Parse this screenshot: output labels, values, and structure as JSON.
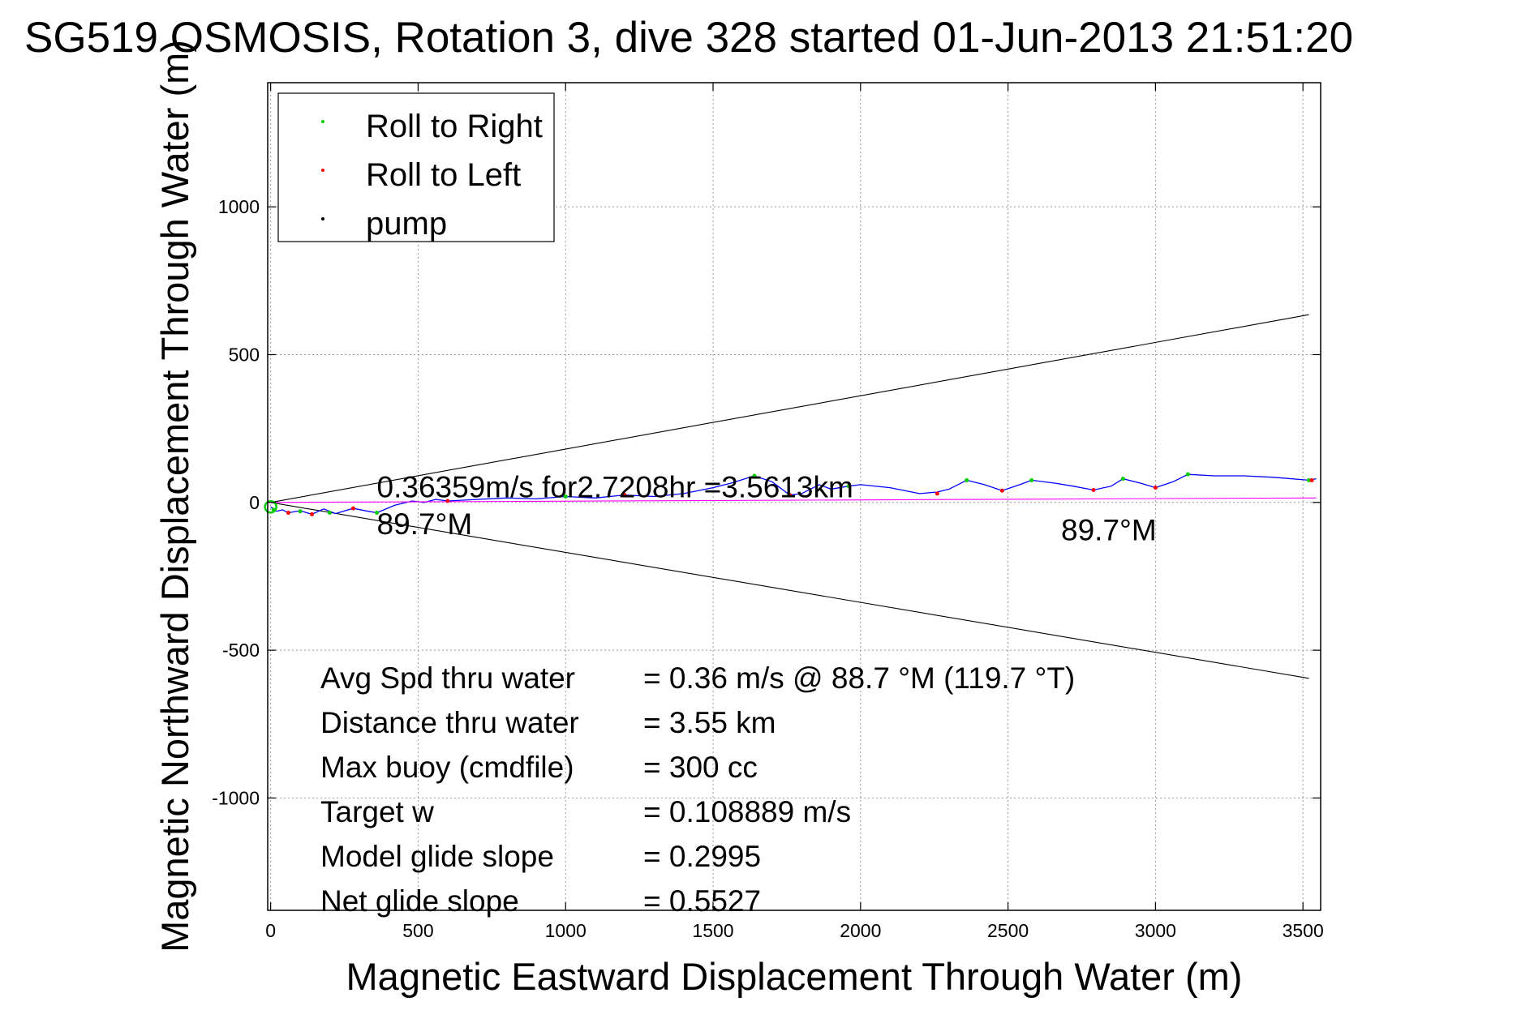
{
  "chart_data": {
    "type": "line",
    "title": "SG519 OSMOSIS, Rotation 3, dive 328 started 01-Jun-2013 21:51:20",
    "xlabel": "Magnetic Eastward Displacement Through Water (m)",
    "ylabel": "Magnetic Northward Displacement Through Water (m)",
    "xlim": [
      -10,
      3560
    ],
    "ylim": [
      -1380,
      1420
    ],
    "xticks": [
      0,
      500,
      1000,
      1500,
      2000,
      2500,
      3000,
      3500
    ],
    "yticks": [
      -1000,
      -500,
      0,
      500,
      1000
    ],
    "grid": true,
    "legend": {
      "placement": "top-left",
      "entries": [
        {
          "label": "Roll to Right",
          "color": "#00cc00"
        },
        {
          "label": "Roll to Left",
          "color": "#ff0000"
        },
        {
          "label": "pump",
          "color": "#000000"
        }
      ]
    },
    "series": [
      {
        "name": "track",
        "color": "#0000ff",
        "x": [
          0,
          20,
          40,
          60,
          100,
          140,
          180,
          220,
          280,
          330,
          360,
          420,
          480,
          520,
          560,
          600,
          700,
          800,
          900,
          1000,
          1100,
          1200,
          1300,
          1400,
          1500,
          1560,
          1640,
          1700,
          1760,
          1800,
          1860,
          1900,
          1960,
          2000,
          2100,
          2200,
          2260,
          2300,
          2360,
          2420,
          2480,
          2540,
          2580,
          2660,
          2720,
          2790,
          2850,
          2890,
          2950,
          3000,
          3060,
          3110,
          3200,
          3300,
          3400,
          3520,
          3545
        ],
        "y": [
          -15,
          -30,
          -25,
          -35,
          -28,
          -40,
          -22,
          -38,
          -20,
          -30,
          -35,
          -10,
          5,
          0,
          10,
          5,
          10,
          15,
          12,
          20,
          15,
          25,
          20,
          30,
          50,
          65,
          90,
          70,
          25,
          30,
          60,
          45,
          55,
          60,
          50,
          30,
          35,
          45,
          75,
          60,
          40,
          60,
          75,
          65,
          55,
          42,
          55,
          80,
          65,
          50,
          70,
          95,
          90,
          90,
          85,
          75,
          80
        ]
      },
      {
        "name": "course",
        "color": "#ff00ff",
        "x": [
          0,
          3545
        ],
        "y": [
          0,
          15
        ]
      },
      {
        "name": "envelope-upper",
        "color": "#000000",
        "x": [
          0,
          3520
        ],
        "y": [
          0,
          635
        ]
      },
      {
        "name": "envelope-lower",
        "color": "#000000",
        "x": [
          0,
          3520
        ],
        "y": [
          0,
          -595
        ]
      }
    ],
    "markers": {
      "roll_right": {
        "color": "#00cc00",
        "x": [
          10,
          100,
          200,
          360,
          1000,
          1640,
          1960,
          2360,
          2580,
          2890,
          3110,
          3520
        ],
        "y": [
          -25,
          -30,
          -35,
          -35,
          20,
          90,
          55,
          75,
          75,
          80,
          95,
          75
        ]
      },
      "roll_left": {
        "color": "#ff0000",
        "x": [
          60,
          140,
          280,
          600,
          1200,
          1760,
          2260,
          2480,
          2790,
          3000,
          3530
        ],
        "y": [
          -35,
          -40,
          -20,
          5,
          25,
          25,
          30,
          40,
          42,
          50,
          75
        ]
      }
    },
    "annotations": [
      {
        "text": "0.36359m/s for2.7208hr =3.5613km",
        "x": 360,
        "y": 50
      },
      {
        "text": "89.7°M",
        "x": 360,
        "y": -75
      },
      {
        "text": "89.7°M",
        "x": 2680,
        "y": -95
      }
    ],
    "stats": [
      {
        "label": "Avg Spd thru water",
        "value": "=  0.36 m/s @  88.7 °M (119.7 °T)"
      },
      {
        "label": "Distance thru water",
        "value": "=  3.55 km"
      },
      {
        "label": "Max buoy (cmdfile)",
        "value": "= 300 cc"
      },
      {
        "label": "Target w",
        "value": "= 0.108889 m/s"
      },
      {
        "label": "Model glide slope",
        "value": "= 0.2995"
      },
      {
        "label": "Net glide slope",
        "value": "= 0.5527"
      }
    ]
  }
}
